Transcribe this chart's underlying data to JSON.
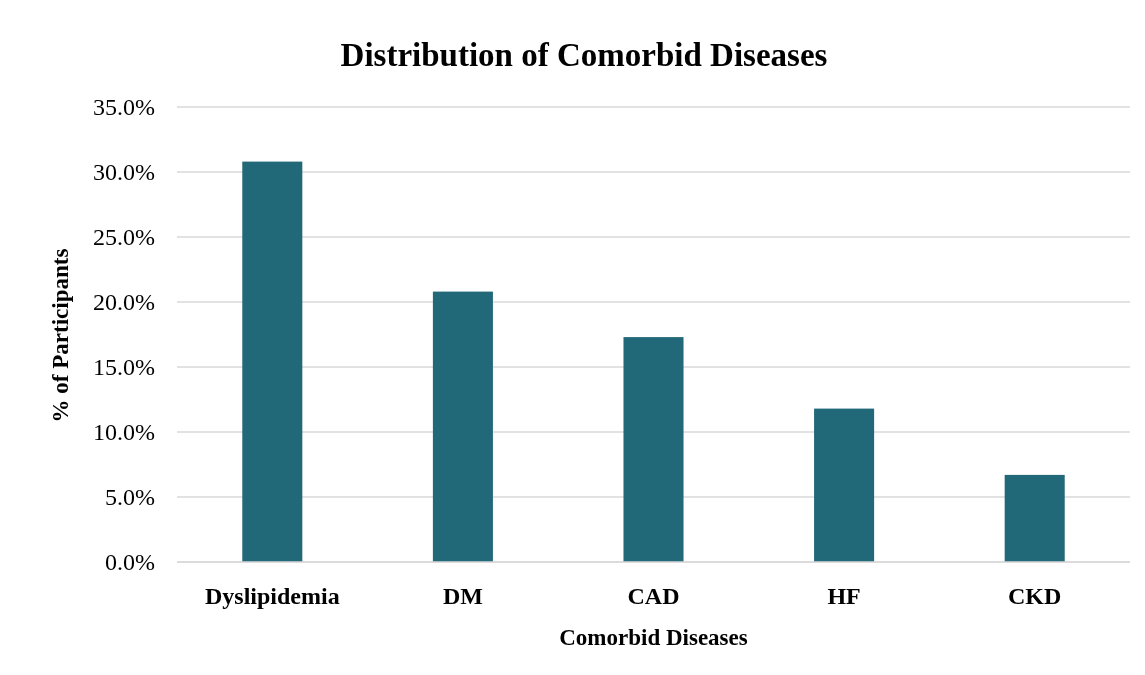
{
  "chart_data": {
    "type": "bar",
    "title": "Distribution of Comorbid Diseases",
    "xlabel": "Comorbid Diseases",
    "ylabel": "% of Participants",
    "categories": [
      "Dyslipidemia",
      "DM",
      "CAD",
      "HF",
      "CKD"
    ],
    "values": [
      30.8,
      20.8,
      17.3,
      11.8,
      6.7
    ],
    "color": "#216878",
    "ylim": [
      0,
      35
    ],
    "yticks": [
      {
        "value": 0,
        "label": "0.0%"
      },
      {
        "value": 5,
        "label": "5.0%"
      },
      {
        "value": 10,
        "label": "10.0%"
      },
      {
        "value": 15,
        "label": "15.0%"
      },
      {
        "value": 20,
        "label": "20.0%"
      },
      {
        "value": 25,
        "label": "25.0%"
      },
      {
        "value": 30,
        "label": "30.0%"
      },
      {
        "value": 35,
        "label": "35.0%"
      }
    ],
    "grid": "y"
  }
}
